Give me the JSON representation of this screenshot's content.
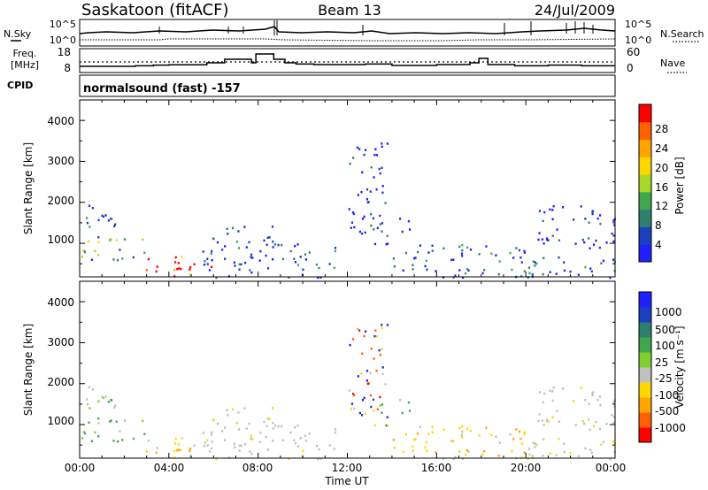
{
  "header": {
    "station": "Saskatoon (fitACF)",
    "beam": "Beam 13",
    "date": "24/Jul/2009"
  },
  "noise_panel": {
    "left_label": "N.Sky",
    "right_label": "N.Search",
    "left_ticks": [
      "10^5",
      "10^0"
    ],
    "right_ticks": [
      "10^5",
      "10^0"
    ]
  },
  "freq_panel": {
    "label_line1": "Freq.",
    "label_line2": "[MHz]",
    "left_ticks": [
      "18",
      "8"
    ],
    "right_label": "Nave",
    "right_ticks": [
      "60",
      "0"
    ],
    "freq_mhz": [
      {
        "t": 0,
        "v": 10.5
      },
      {
        "t": 2.5,
        "v": 10.8
      },
      {
        "t": 3.3,
        "v": 11.2
      },
      {
        "t": 4.0,
        "v": 11.4
      },
      {
        "t": 5.7,
        "v": 12.5
      },
      {
        "t": 6.5,
        "v": 14.5
      },
      {
        "t": 7.7,
        "v": 12.5
      },
      {
        "t": 7.9,
        "v": 17.5
      },
      {
        "t": 8.7,
        "v": 14.5
      },
      {
        "t": 9.2,
        "v": 12.5
      },
      {
        "t": 9.7,
        "v": 11.8
      },
      {
        "t": 10.5,
        "v": 11.5
      },
      {
        "t": 12.8,
        "v": 11.8
      },
      {
        "t": 14.0,
        "v": 11.0
      },
      {
        "t": 16.0,
        "v": 11.5
      },
      {
        "t": 17.5,
        "v": 12.5
      },
      {
        "t": 17.9,
        "v": 15.0
      },
      {
        "t": 18.3,
        "v": 11.5
      },
      {
        "t": 19.5,
        "v": 10.8
      },
      {
        "t": 21.0,
        "v": 11.2
      },
      {
        "t": 22.5,
        "v": 10.8
      },
      {
        "t": 24.0,
        "v": 10.8
      }
    ],
    "nave_dotted_level": 30
  },
  "cpid": {
    "label": "CPID",
    "program": "normalsound (fast) -157"
  },
  "power_panel": {
    "ylabel": "Slant Range [km]",
    "yticks": [
      "1000",
      "2000",
      "3000",
      "4000"
    ],
    "colorbar_label": "Power [dB]",
    "colorbar_ticks": [
      "4",
      "8",
      "12",
      "16",
      "20",
      "24",
      "28"
    ],
    "colors": [
      "#1f1fff",
      "#1b3fbf",
      "#2f7f6f",
      "#3fa84f",
      "#a8d828",
      "#ffd700",
      "#ffa500",
      "#ff6000",
      "#ff0000"
    ]
  },
  "velocity_panel": {
    "ylabel": "Slant Range [km]",
    "yticks": [
      "1000",
      "2000",
      "3000",
      "4000"
    ],
    "colorbar_label": "Velocity [m s⁻¹]",
    "colorbar_ticks": [
      "1000",
      "500",
      "100",
      "25",
      "-25",
      "-100",
      "-500",
      "-1000"
    ],
    "colors": [
      "#1f1fff",
      "#1b3fbf",
      "#2f7f6f",
      "#3fa84f",
      "#7fd02f",
      "#c0c0c0",
      "#ffd700",
      "#ffa500",
      "#ff6000",
      "#ff0000"
    ]
  },
  "xaxis": {
    "label": "Time UT",
    "ticks": [
      "00:00",
      "04:00",
      "08:00",
      "12:00",
      "16:00",
      "20:00",
      "00:00"
    ]
  },
  "chart_data": {
    "type": "heatmap",
    "title": "Saskatoon (fitACF)   Beam 13   24/Jul/2009",
    "xlabel": "Time UT",
    "ylabel": "Slant Range [km]",
    "xlim_hours": [
      0,
      24
    ],
    "ylim_km": [
      180,
      4500
    ],
    "grid": false,
    "power_colorbar_db": [
      4,
      8,
      12,
      16,
      20,
      24,
      28
    ],
    "velocity_colorbar_mps": [
      1000,
      500,
      100,
      25,
      -25,
      -100,
      -500,
      -1000
    ],
    "scatter_regions": [
      {
        "t0": 0.0,
        "t1": 2.3,
        "r0": 1400,
        "r1": 1950,
        "power": "medium",
        "velocity": "gray-green"
      },
      {
        "t0": 0.0,
        "t1": 3.0,
        "r0": 600,
        "r1": 1200,
        "power": "medium-high",
        "velocity": "green"
      },
      {
        "t0": 2.8,
        "t1": 6.0,
        "r0": 180,
        "r1": 700,
        "power": "high (28 dB)",
        "velocity": "gray-orange"
      },
      {
        "t0": 5.5,
        "t1": 9.0,
        "r0": 180,
        "r1": 1500,
        "power": "medium",
        "velocity": "gray"
      },
      {
        "t0": 9.0,
        "t1": 11.5,
        "r0": 180,
        "r1": 1000,
        "power": "medium",
        "velocity": "gray"
      },
      {
        "t0": 12.0,
        "t1": 13.8,
        "r0": 1000,
        "r1": 3500,
        "power": "low-medium",
        "velocity": "mixed"
      },
      {
        "t0": 13.0,
        "t1": 14.8,
        "r0": 1300,
        "r1": 1650,
        "power": "medium",
        "velocity": "green"
      },
      {
        "t0": 14.0,
        "t1": 20.5,
        "r0": 180,
        "r1": 1000,
        "power": "medium",
        "velocity": "yellow-orange"
      },
      {
        "t0": 20.5,
        "t1": 24.0,
        "r0": 900,
        "r1": 2000,
        "power": "low-medium",
        "velocity": "gray"
      },
      {
        "t0": 20.0,
        "t1": 24.0,
        "r0": 180,
        "r1": 700,
        "power": "medium",
        "velocity": "gray-yellow"
      }
    ]
  }
}
